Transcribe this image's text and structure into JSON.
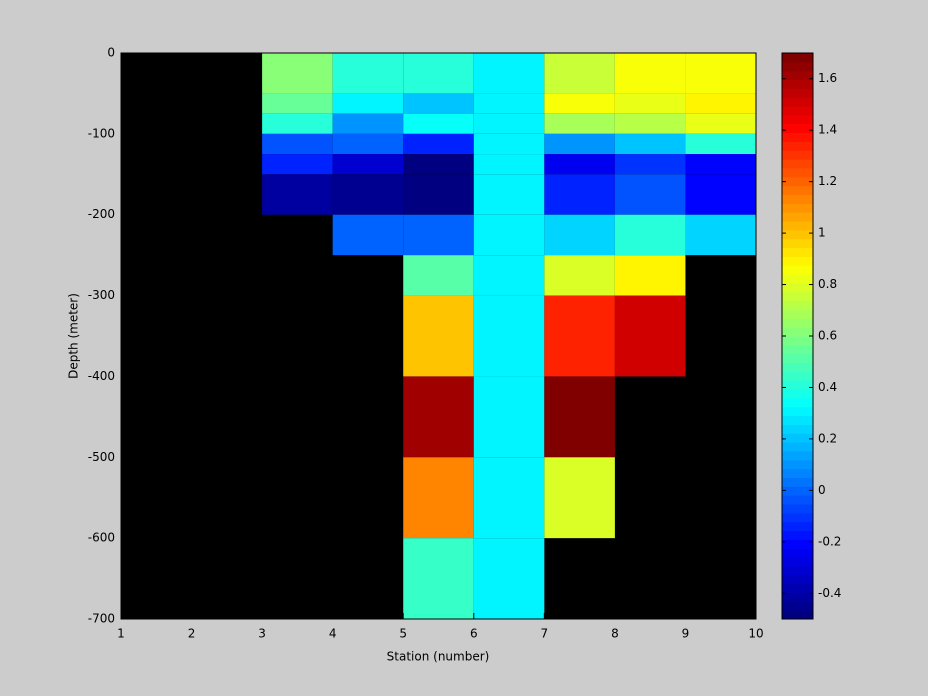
{
  "chart_data": {
    "type": "heatmap",
    "xlabel": "Station (number)",
    "ylabel": "Depth (meter)",
    "x": [
      1,
      2,
      3,
      4,
      5,
      6,
      7,
      8,
      9,
      10
    ],
    "y": [
      0,
      -50,
      -75,
      -100,
      -125,
      -150,
      -200,
      -250,
      -300,
      -400,
      -500,
      -600,
      -700
    ],
    "values": [
      [
        null,
        null,
        0.6,
        0.4,
        0.4,
        0.3,
        0.75,
        0.85,
        0.85
      ],
      [
        null,
        null,
        0.55,
        0.3,
        0.2,
        0.3,
        0.85,
        0.82,
        0.9
      ],
      [
        null,
        null,
        0.4,
        0.1,
        0.35,
        0.3,
        0.7,
        0.72,
        0.82
      ],
      [
        null,
        null,
        -0.05,
        0.0,
        -0.15,
        0.3,
        0.1,
        0.2,
        0.4
      ],
      [
        null,
        null,
        -0.15,
        -0.3,
        -0.5,
        0.3,
        -0.25,
        -0.1,
        -0.2
      ],
      [
        null,
        null,
        -0.4,
        -0.45,
        -0.5,
        0.3,
        -0.15,
        -0.05,
        -0.2
      ],
      [
        null,
        null,
        null,
        0.0,
        0.0,
        0.3,
        0.25,
        0.4,
        0.25
      ],
      [
        null,
        null,
        null,
        null,
        0.5,
        0.3,
        0.8,
        0.88,
        null
      ],
      [
        null,
        null,
        null,
        null,
        1.0,
        0.3,
        1.35,
        1.5,
        null
      ],
      [
        null,
        null,
        null,
        null,
        1.6,
        0.3,
        1.7,
        null,
        null
      ],
      [
        null,
        null,
        null,
        null,
        1.15,
        0.3,
        0.8,
        null,
        null
      ],
      [
        null,
        null,
        null,
        null,
        0.45,
        0.3,
        null,
        null,
        null
      ]
    ],
    "xlim": [
      1,
      10
    ],
    "ylim": [
      -700,
      0
    ],
    "xticks": [
      1,
      2,
      3,
      4,
      5,
      6,
      7,
      8,
      9,
      10
    ],
    "yticks": [
      0,
      -100,
      -200,
      -300,
      -400,
      -500,
      -600,
      -700
    ],
    "colormap": "jet",
    "clim": [
      -0.5,
      1.7
    ],
    "cticks": [
      -0.4,
      -0.2,
      0,
      0.2,
      0.4,
      0.6,
      0.8,
      1,
      1.2,
      1.4,
      1.6
    ],
    "missing_color": "#000000"
  }
}
